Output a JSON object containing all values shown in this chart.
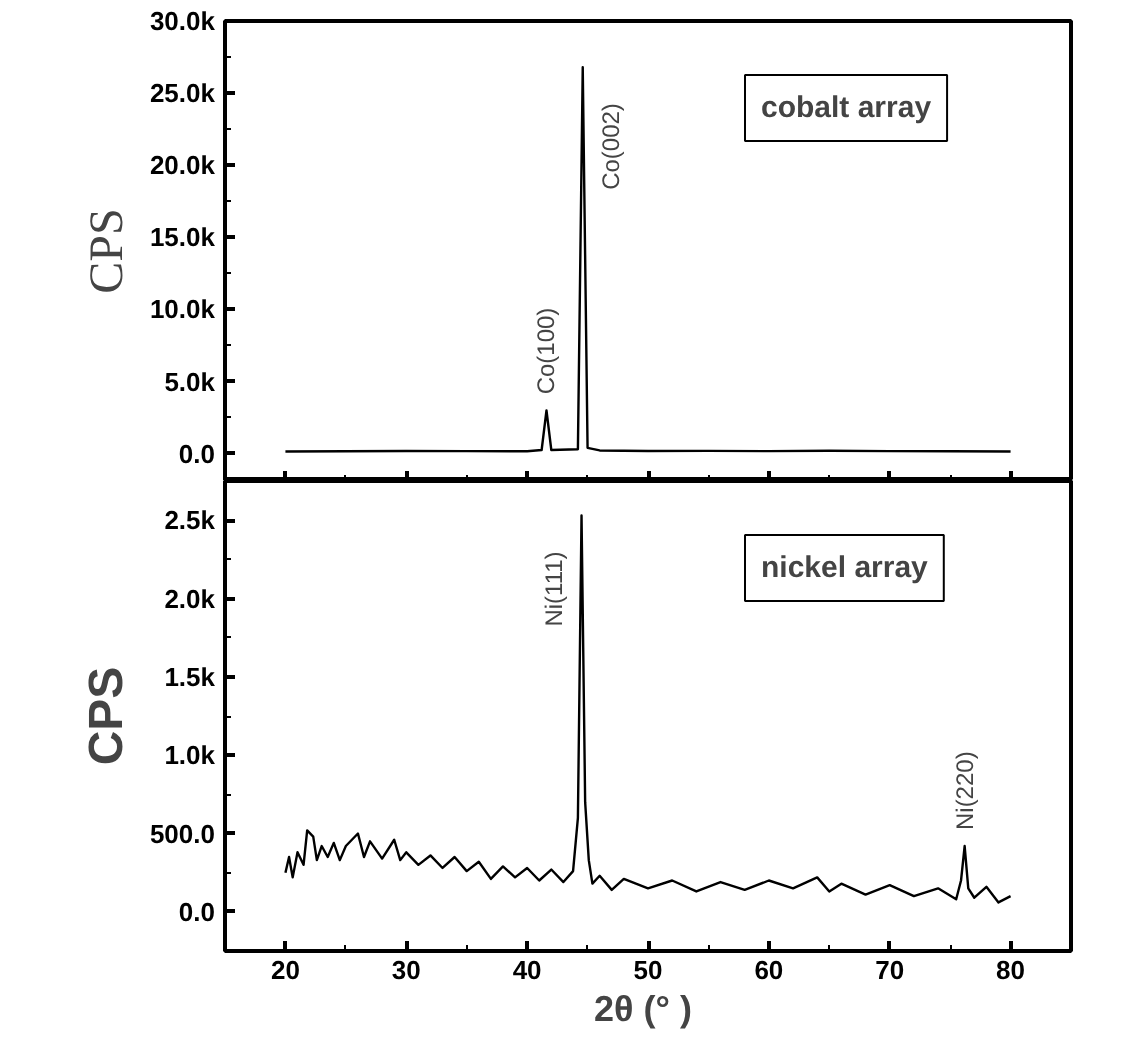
{
  "chart_data": [
    {
      "type": "line",
      "ylabel": "CPS",
      "tick_labels": "y",
      "grid": false,
      "xlim": [
        15,
        85
      ],
      "xticks": [
        20,
        30,
        40,
        50,
        60,
        70,
        80
      ],
      "ylim": [
        -1900,
        30000
      ],
      "yticks": [
        {
          "value": 0,
          "label": "0.0"
        },
        {
          "value": 5000,
          "label": "5.0k"
        },
        {
          "value": 10000,
          "label": "10.0k"
        },
        {
          "value": 15000,
          "label": "15.0k"
        },
        {
          "value": 20000,
          "label": "20.0k"
        },
        {
          "value": 25000,
          "label": "25.0k"
        },
        {
          "value": 30000,
          "label": "30.0k"
        }
      ],
      "series": [
        {
          "color": "#000000",
          "x": [
            20,
            25,
            30,
            35,
            40,
            41.2,
            41.6,
            42.0,
            44.2,
            44.6,
            45.0,
            46,
            50,
            55,
            60,
            65,
            70,
            75,
            80
          ],
          "values": [
            150,
            160,
            180,
            170,
            160,
            250,
            3000,
            250,
            300,
            26800,
            400,
            220,
            180,
            190,
            170,
            200,
            170,
            160,
            150
          ]
        }
      ],
      "annotations": [
        "cobalt array",
        {
          "text": "Co(100)",
          "x": 41.6,
          "y": 3000
        },
        {
          "text": "Co(002)",
          "x": 44.6,
          "y": 26800
        }
      ]
    },
    {
      "type": "line",
      "ylabel": "CPS",
      "xlabel": "2θ (°  )",
      "grid": false,
      "xlim": [
        15,
        85
      ],
      "xticks": [
        20,
        30,
        40,
        50,
        60,
        70,
        80
      ],
      "ylim": [
        -250,
        2750
      ],
      "yticks": [
        {
          "value": 0,
          "label": "0.0"
        },
        {
          "value": 500,
          "label": "500.0"
        },
        {
          "value": 1000,
          "label": "1.0k"
        },
        {
          "value": 1500,
          "label": "1.5k"
        },
        {
          "value": 2000,
          "label": "2.0k"
        },
        {
          "value": 2500,
          "label": "2.5k"
        }
      ],
      "series": [
        {
          "color": "#000000",
          "x": [
            20,
            20.3,
            20.6,
            21,
            21.5,
            21.8,
            22.3,
            22.6,
            23,
            23.5,
            24,
            24.5,
            25,
            26,
            26.5,
            27,
            28,
            29,
            29.5,
            30,
            31,
            32,
            33,
            34,
            35,
            36,
            37,
            38,
            39,
            40,
            41,
            42,
            43,
            43.8,
            44.2,
            44.5,
            44.8,
            45.1,
            45.4,
            46,
            47,
            48,
            50,
            52,
            54,
            56,
            58,
            60,
            62,
            64,
            65,
            66,
            68,
            70,
            72,
            74,
            75.5,
            75.9,
            76.2,
            76.5,
            77,
            78,
            79,
            80
          ],
          "values": [
            250,
            350,
            220,
            380,
            300,
            520,
            480,
            330,
            420,
            350,
            440,
            330,
            420,
            500,
            350,
            450,
            340,
            460,
            330,
            380,
            300,
            360,
            280,
            350,
            260,
            320,
            210,
            290,
            220,
            280,
            200,
            270,
            190,
            260,
            600,
            2530,
            700,
            330,
            180,
            230,
            140,
            210,
            150,
            200,
            130,
            190,
            140,
            200,
            150,
            220,
            130,
            180,
            110,
            170,
            100,
            150,
            80,
            200,
            420,
            150,
            90,
            160,
            60,
            100
          ]
        }
      ],
      "annotations": [
        "nickel array",
        {
          "text": "Ni(111)",
          "x": 44.5,
          "y": 2530
        },
        {
          "text": "Ni(220)",
          "x": 76.2,
          "y": 420
        }
      ]
    }
  ]
}
